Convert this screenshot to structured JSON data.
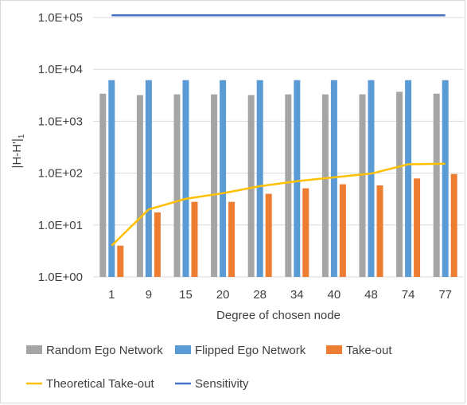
{
  "chart_data": {
    "type": "bar",
    "title": "",
    "xlabel": "Degree of chosen node",
    "ylabel": "|H-H'|",
    "ylabel_subscript": "1",
    "yscale": "log",
    "ylim": [
      1,
      100000
    ],
    "y_tick_labels": [
      "1.0E+00",
      "1.0E+01",
      "1.0E+02",
      "1.0E+03",
      "1.0E+04",
      "1.0E+05"
    ],
    "grid": "horizontal",
    "legend_position": "bottom",
    "categories": [
      "1",
      "9",
      "15",
      "20",
      "28",
      "34",
      "40",
      "48",
      "74",
      "77"
    ],
    "series": [
      {
        "name": "Random Ego Network",
        "kind": "bar",
        "color": "#a5a5a5",
        "values": [
          3400,
          3200,
          3300,
          3300,
          3200,
          3300,
          3300,
          3300,
          3700,
          3400
        ]
      },
      {
        "name": "Flipped Ego Network",
        "kind": "bar",
        "color": "#5b9bd5",
        "values": [
          6200,
          6200,
          6200,
          6200,
          6200,
          6200,
          6200,
          6200,
          6200,
          6200
        ]
      },
      {
        "name": "Take-out",
        "kind": "bar",
        "color": "#ed7d31",
        "values": [
          4,
          17.5,
          28,
          28,
          40,
          51,
          61,
          58,
          79,
          96
        ]
      },
      {
        "name": "Theoretical Take-out",
        "kind": "line",
        "color": "#ffc000",
        "values": [
          4,
          20,
          32,
          41,
          56,
          70,
          83,
          98,
          148,
          152
        ]
      },
      {
        "name": "Sensitivity",
        "kind": "line",
        "color": "#4472c4",
        "values": [
          110000,
          110000,
          110000,
          110000,
          110000,
          110000,
          110000,
          110000,
          110000,
          110000
        ]
      }
    ]
  }
}
